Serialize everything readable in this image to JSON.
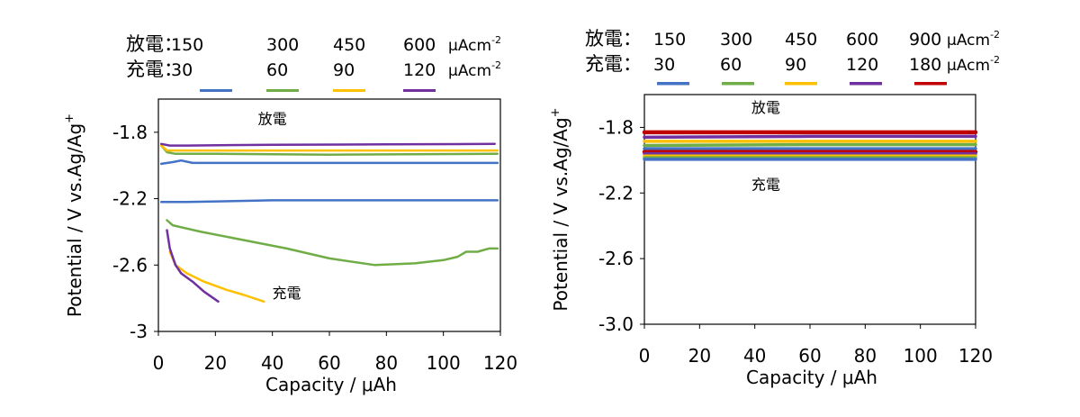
{
  "chart_data": [
    {
      "type": "line",
      "legend_rows": [
        {
          "label": "放電：",
          "values": [
            "150",
            "300",
            "450",
            "600"
          ],
          "unit_base": "μAcm",
          "unit_exp": "-2"
        },
        {
          "label": "充電：",
          "values": [
            "30",
            "60",
            "90",
            "120"
          ],
          "unit_base": "μAcm",
          "unit_exp": "-2"
        }
      ],
      "colors": [
        "#4472c4",
        "#70ad47",
        "#ffc000",
        "#7030a0"
      ],
      "xlabel": "Capacity / μAh",
      "ylabel_base": "Potential / V vs.Ag/Ag",
      "ylabel_sup": "+",
      "xlim": [
        0,
        120
      ],
      "ylim": [
        -3,
        -1.6
      ],
      "xticks": [
        "0",
        "20",
        "40",
        "60",
        "80",
        "100",
        "120"
      ],
      "yticks": [
        "-1.8",
        "-2.2",
        "-2.6",
        "-3"
      ],
      "annotations": [
        {
          "text": "放電",
          "x": 40,
          "y": -1.75
        },
        {
          "text": "充電",
          "x": 45,
          "y": -2.8
        }
      ],
      "series": [
        {
          "name": "放電 150",
          "color": "#4472c4",
          "x": [
            1,
            5,
            8,
            12,
            30,
            60,
            90,
            119
          ],
          "y": [
            -1.99,
            -1.98,
            -1.97,
            -1.985,
            -1.985,
            -1.985,
            -1.985,
            -1.985
          ]
        },
        {
          "name": "放電 300",
          "color": "#70ad47",
          "x": [
            1,
            3,
            6,
            20,
            60,
            119
          ],
          "y": [
            -1.88,
            -1.92,
            -1.93,
            -1.93,
            -1.935,
            -1.93
          ]
        },
        {
          "name": "放電 450",
          "color": "#ffc000",
          "x": [
            1,
            3,
            6,
            20,
            60,
            119
          ],
          "y": [
            -1.88,
            -1.91,
            -1.91,
            -1.91,
            -1.91,
            -1.91
          ]
        },
        {
          "name": "放電 600",
          "color": "#7030a0",
          "x": [
            1,
            4,
            10,
            40,
            80,
            118
          ],
          "y": [
            -1.87,
            -1.88,
            -1.88,
            -1.875,
            -1.873,
            -1.87
          ]
        },
        {
          "name": "充電 30",
          "color": "#4472c4",
          "x": [
            1,
            10,
            40,
            80,
            119
          ],
          "y": [
            -2.22,
            -2.22,
            -2.21,
            -2.21,
            -2.21
          ]
        },
        {
          "name": "充電 60",
          "color": "#70ad47",
          "x": [
            3,
            5,
            15,
            30,
            45,
            60,
            76,
            90,
            100,
            105,
            108,
            112,
            116,
            119
          ],
          "y": [
            -2.33,
            -2.36,
            -2.4,
            -2.45,
            -2.5,
            -2.56,
            -2.6,
            -2.59,
            -2.57,
            -2.55,
            -2.52,
            -2.52,
            -2.5,
            -2.5
          ]
        },
        {
          "name": "充電 90",
          "color": "#ffc000",
          "x": [
            4,
            6,
            10,
            16,
            24,
            30,
            37
          ],
          "y": [
            -2.52,
            -2.6,
            -2.65,
            -2.7,
            -2.75,
            -2.78,
            -2.82
          ]
        },
        {
          "name": "充電 120",
          "color": "#7030a0",
          "x": [
            3,
            4,
            6,
            8,
            12,
            16,
            21
          ],
          "y": [
            -2.39,
            -2.5,
            -2.6,
            -2.65,
            -2.7,
            -2.76,
            -2.82
          ]
        }
      ]
    },
    {
      "type": "line",
      "legend_rows": [
        {
          "label": "放電：",
          "values": [
            "150",
            "300",
            "450",
            "600",
            "900"
          ],
          "unit_base": "μAcm",
          "unit_exp": "-2"
        },
        {
          "label": "充電：",
          "values": [
            "30",
            "60",
            "90",
            "120",
            "180"
          ],
          "unit_base": "μAcm",
          "unit_exp": "-2"
        }
      ],
      "colors": [
        "#4472c4",
        "#70ad47",
        "#ffc000",
        "#7030a0",
        "#c00000"
      ],
      "xlabel": "Capacity / μAh",
      "ylabel_base": "Potential / V vs.Ag/Ag",
      "ylabel_sup": "+",
      "xlim": [
        0,
        120
      ],
      "ylim": [
        -3.0,
        -1.6
      ],
      "xticks": [
        "0",
        "20",
        "40",
        "60",
        "80",
        "100",
        "120"
      ],
      "yticks": [
        "-1.8",
        "-2.2",
        "-2.6",
        "-3.0"
      ],
      "annotations": [
        {
          "text": "放電",
          "x": 44,
          "y": -1.71
        },
        {
          "text": "充電",
          "x": 44,
          "y": -2.18
        }
      ],
      "series": [
        {
          "name": "放電 900",
          "color": "#c00000",
          "x": [
            0,
            60,
            120
          ],
          "y": [
            -1.83,
            -1.83,
            -1.83
          ]
        },
        {
          "name": "放電 600",
          "color": "#7030a0",
          "x": [
            0,
            60,
            120
          ],
          "y": [
            -1.86,
            -1.855,
            -1.855
          ]
        },
        {
          "name": "放電 450",
          "color": "#ffc000",
          "x": [
            0,
            60,
            120
          ],
          "y": [
            -1.885,
            -1.885,
            -1.885
          ]
        },
        {
          "name": "放電 300",
          "color": "#70ad47",
          "x": [
            0,
            60,
            120
          ],
          "y": [
            -1.91,
            -1.905,
            -1.905
          ]
        },
        {
          "name": "放電 150",
          "color": "#4472c4",
          "x": [
            0,
            60,
            120
          ],
          "y": [
            -1.93,
            -1.93,
            -1.93
          ]
        },
        {
          "name": "充電 180",
          "color": "#c00000",
          "x": [
            0,
            60,
            120
          ],
          "y": [
            -1.95,
            -1.95,
            -1.95
          ]
        },
        {
          "name": "充電 120",
          "color": "#7030a0",
          "x": [
            0,
            60,
            120
          ],
          "y": [
            -1.96,
            -1.96,
            -1.96
          ]
        },
        {
          "name": "充電 90",
          "color": "#ffc000",
          "x": [
            0,
            60,
            120
          ],
          "y": [
            -1.975,
            -1.975,
            -1.975
          ]
        },
        {
          "name": "充電 60",
          "color": "#70ad47",
          "x": [
            0,
            60,
            120
          ],
          "y": [
            -1.985,
            -1.985,
            -1.985
          ]
        },
        {
          "name": "充電 30",
          "color": "#4472c4",
          "x": [
            0,
            60,
            120
          ],
          "y": [
            -1.995,
            -1.995,
            -1.995
          ]
        }
      ]
    }
  ]
}
